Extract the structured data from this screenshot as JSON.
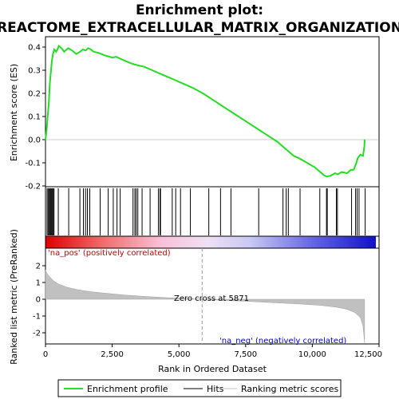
{
  "title_line1": "Enrichment plot:",
  "title_line2": "REACTOME_EXTRACELLULAR_MATRIX_ORGANIZATION",
  "colors": {
    "profile": "#22dd22",
    "hits": "#000000",
    "metric_fill": "#c0c0c0",
    "pos_label": "#cc0000",
    "neg_label": "#0000cc",
    "zero_line": "#999999"
  },
  "chart_data": [
    {
      "type": "line",
      "panel": "enrichment-profile",
      "ylabel": "Enrichment score (ES)",
      "ylim": [
        -0.2,
        0.43
      ],
      "xlim": [
        0,
        12500
      ],
      "yticks": [
        0.4,
        0.3,
        0.2,
        0.1,
        0.0,
        -0.1,
        -0.2
      ],
      "ytick_labels": [
        "0.4",
        "0.3",
        "0.2",
        "0.1",
        "0.0",
        "-0.1",
        "-0.2"
      ],
      "grid": false,
      "series": [
        {
          "name": "Enrichment profile",
          "x": [
            0,
            40,
            80,
            120,
            160,
            200,
            240,
            280,
            330,
            400,
            450,
            500,
            600,
            700,
            850,
            1000,
            1150,
            1300,
            1400,
            1500,
            1600,
            1700,
            1800,
            2000,
            2200,
            2350,
            2500,
            2650,
            2800,
            3000,
            3200,
            3350,
            3500,
            3700,
            3900,
            4100,
            4300,
            4600,
            4900,
            5200,
            5500,
            5900,
            6300,
            6700,
            7100,
            7500,
            7900,
            8300,
            8700,
            8900,
            9100,
            9300,
            9500,
            9800,
            10100,
            10300,
            10450,
            10550,
            10700,
            10850,
            10950,
            11100,
            11300,
            11450,
            11550,
            11650,
            11700,
            11800,
            11900,
            11950,
            11960
          ],
          "y": [
            0.0,
            0.04,
            0.1,
            0.15,
            0.24,
            0.29,
            0.34,
            0.37,
            0.39,
            0.38,
            0.39,
            0.405,
            0.395,
            0.38,
            0.395,
            0.385,
            0.37,
            0.38,
            0.39,
            0.385,
            0.395,
            0.39,
            0.38,
            0.375,
            0.365,
            0.36,
            0.355,
            0.358,
            0.35,
            0.34,
            0.33,
            0.325,
            0.32,
            0.315,
            0.305,
            0.295,
            0.285,
            0.27,
            0.255,
            0.24,
            0.225,
            0.2,
            0.17,
            0.14,
            0.11,
            0.08,
            0.05,
            0.02,
            -0.01,
            -0.03,
            -0.05,
            -0.07,
            -0.08,
            -0.1,
            -0.12,
            -0.14,
            -0.155,
            -0.16,
            -0.155,
            -0.145,
            -0.15,
            -0.14,
            -0.145,
            -0.13,
            -0.13,
            -0.1,
            -0.08,
            -0.065,
            -0.07,
            -0.03,
            0.0
          ]
        }
      ]
    },
    {
      "type": "scatter",
      "panel": "hits",
      "series": [
        {
          "name": "Hits",
          "x": [
            60,
            100,
            140,
            170,
            200,
            230,
            260,
            290,
            320,
            480,
            870,
            1290,
            1420,
            1500,
            1570,
            1660,
            2050,
            2350,
            2540,
            2680,
            2800,
            3280,
            3350,
            3400,
            3460,
            3620,
            3920,
            4230,
            4290,
            4310,
            4750,
            4880,
            5060,
            5430,
            6120,
            6560,
            6950,
            7990,
            8900,
            9020,
            9100,
            9540,
            10280,
            10530,
            10560,
            10900,
            10940,
            11470,
            11620,
            11680,
            11750,
            11980
          ]
        }
      ]
    },
    {
      "type": "area",
      "panel": "ranked-list-metric",
      "ylabel": "Ranked list metric (PreRanked)",
      "xlabel": "Rank in Ordered Dataset",
      "xlim": [
        0,
        12500
      ],
      "ylim": [
        -2.7,
        2.8
      ],
      "xticks": [
        0,
        2500,
        5000,
        7500,
        10000,
        12500
      ],
      "xtick_labels": [
        "0",
        "2,500",
        "5,000",
        "7,500",
        "10,000",
        "12,500"
      ],
      "yticks": [
        2,
        1,
        0,
        -1,
        -2
      ],
      "ytick_labels": [
        "2",
        "1",
        "0",
        "-1",
        "-2"
      ],
      "zero_cross": 5871,
      "series": [
        {
          "name": "Ranking metric scores",
          "x": [
            0,
            50,
            150,
            300,
            500,
            800,
            1200,
            1700,
            2300,
            3000,
            3800,
            4600,
            5300,
            5871,
            6500,
            7500,
            8500,
            9500,
            10300,
            10900,
            11300,
            11600,
            11800,
            11900,
            11960
          ],
          "y": [
            1.75,
            1.55,
            1.35,
            1.1,
            0.9,
            0.72,
            0.57,
            0.45,
            0.35,
            0.25,
            0.16,
            0.09,
            0.04,
            0.0,
            -0.05,
            -0.12,
            -0.2,
            -0.28,
            -0.36,
            -0.47,
            -0.6,
            -0.8,
            -1.1,
            -1.6,
            -2.6
          ]
        }
      ]
    }
  ],
  "annotations": {
    "pos": "'na_pos' (positively correlated)",
    "neg": "'na_neg' (negatively correlated)",
    "zero_cross": "Zero cross at 5871"
  },
  "legend": {
    "profile": "Enrichment profile",
    "hits": "Hits",
    "metric": "Ranking metric scores"
  }
}
